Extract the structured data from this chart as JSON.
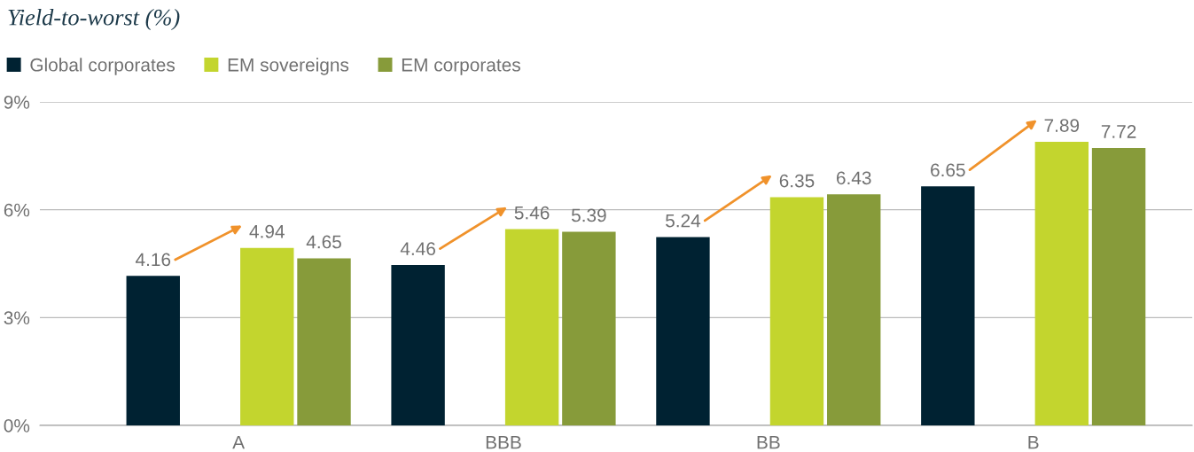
{
  "chart_data": {
    "type": "bar",
    "title": "Yield-to-worst (%)",
    "categories": [
      "A",
      "BBB",
      "BB",
      "B"
    ],
    "series": [
      {
        "name": "Global corporates",
        "color": "#002232",
        "values": [
          4.16,
          4.46,
          5.24,
          6.65
        ]
      },
      {
        "name": "EM sovereigns",
        "color": "#c3d52e",
        "values": [
          4.94,
          5.46,
          6.35,
          7.89
        ]
      },
      {
        "name": "EM corporates",
        "color": "#879b3a",
        "values": [
          4.65,
          5.39,
          6.43,
          7.72
        ]
      }
    ],
    "ylim": [
      0,
      9
    ],
    "yticks": [
      {
        "value": 0,
        "label": "0%"
      },
      {
        "value": 3,
        "label": "3%"
      },
      {
        "value": 6,
        "label": "6%"
      },
      {
        "value": 9,
        "label": "9%"
      }
    ],
    "grid": "y",
    "legend": "top left",
    "data_labels": true
  }
}
